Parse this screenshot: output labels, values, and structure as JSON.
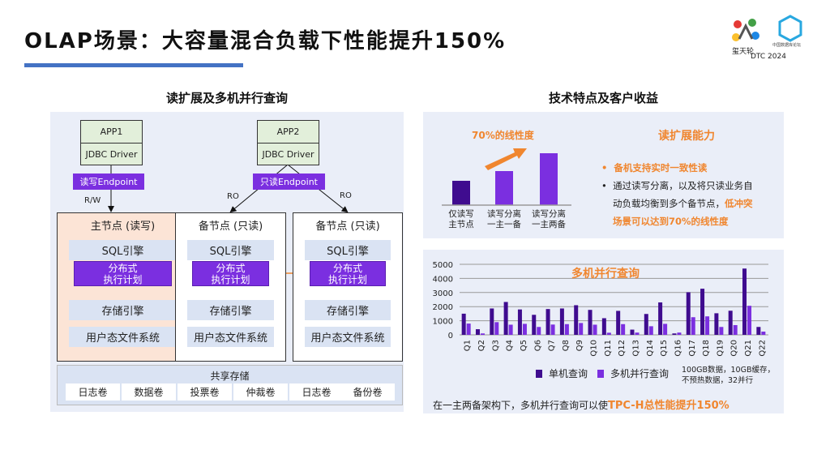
{
  "header": {
    "title": "OLAP场景：大容量混合负载下性能提升150%",
    "logo_text": "玺天轮",
    "logo2_text": "中国数据库论坛",
    "event": "DTC 2024"
  },
  "left": {
    "title": "读扩展及多机并行查询",
    "apps": [
      {
        "name": "APP1",
        "driver": "JDBC Driver"
      },
      {
        "name": "APP2",
        "driver": "JDBC Driver"
      }
    ],
    "endpoints": {
      "rw": "读写Endpoint",
      "ro": "只读Endpoint"
    },
    "links": {
      "rw": "R/W",
      "ro": "RO"
    },
    "nodes": [
      {
        "title": "主节点 (读写)"
      },
      {
        "title": "备节点 (只读)"
      },
      {
        "title": "备节点 (只读)"
      }
    ],
    "layers": {
      "sql": "SQL引擎",
      "dist1": "分布式",
      "dist2": "执行计划",
      "storage": "存储引擎",
      "fs": "用户态文件系统"
    },
    "shared": {
      "title": "共享存储",
      "volumes": [
        "日志卷",
        "数据卷",
        "投票卷",
        "仲裁卷",
        "日志卷",
        "备份卷"
      ]
    }
  },
  "right": {
    "title": "技术特点及客户收益",
    "read_scale": {
      "title": "读扩展能力",
      "arrow_label": "70%的线性度",
      "bars": [
        {
          "l1": "仅读写",
          "l2": "主节点",
          "value": 1
        },
        {
          "l1": "读写分离",
          "l2": "一主一备",
          "value": 1.4
        },
        {
          "l1": "读写分离",
          "l2": "一主两备",
          "value": 2.1
        }
      ],
      "bullet1": "备机支持实时一致性读",
      "bullet2a": "通过读写分离，以及将只读业务自",
      "bullet2b": "动负载均衡到多个备节点，",
      "bullet2c": "低冲突",
      "bullet2d": "场景可以达到70%的线性度"
    },
    "footer_a": "在一主两备架构下，多机并行查询可以使",
    "footer_b": "TPC-H总性能提升150%",
    "note1": "100GB数据，10GB缓存，",
    "note2": "不预热数据，32并行"
  },
  "colors": {
    "accent": "#f0862f",
    "purple": "#7b2fe0",
    "dark_purple": "#3f0c8f",
    "blue": "#4472c4"
  },
  "chart_data": {
    "type": "bar",
    "title": "多机并行查询",
    "ylim": [
      0,
      5000
    ],
    "yticks": [
      0,
      1000,
      2000,
      3000,
      4000,
      5000
    ],
    "grid": true,
    "legend": "bottom",
    "categories": [
      "Q1",
      "Q2",
      "Q3",
      "Q4",
      "Q5",
      "Q6",
      "Q7",
      "Q8",
      "Q9",
      "Q10",
      "Q11",
      "Q12",
      "Q13",
      "Q14",
      "Q15",
      "Q16",
      "Q17",
      "Q18",
      "Q19",
      "Q20",
      "Q21",
      "Q22"
    ],
    "series": [
      {
        "name": "单机查询",
        "color": "#3f0c8f",
        "values": [
          1500,
          400,
          1870,
          2330,
          1800,
          1420,
          1830,
          1870,
          2100,
          1770,
          1180,
          1700,
          370,
          1480,
          2300,
          100,
          3020,
          3270,
          1530,
          1710,
          4700,
          560
        ]
      },
      {
        "name": "多机并行查询",
        "color": "#7b2fe0",
        "values": [
          800,
          100,
          900,
          720,
          780,
          560,
          730,
          760,
          840,
          720,
          150,
          760,
          160,
          610,
          780,
          160,
          1250,
          1310,
          560,
          690,
          2060,
          230
        ]
      }
    ]
  }
}
